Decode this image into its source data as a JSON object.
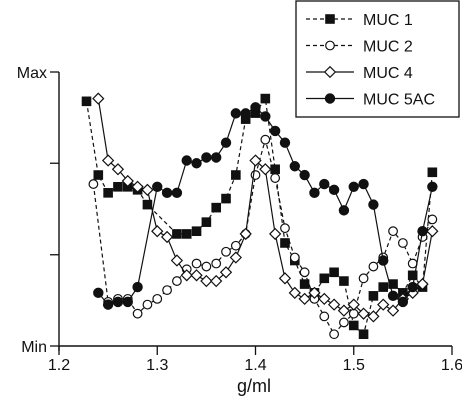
{
  "chart_data": {
    "type": "line",
    "title": "",
    "xlabel": "g/ml",
    "ylabel": "",
    "xlim": [
      1.2,
      1.6
    ],
    "ylim": [
      0,
      1
    ],
    "x_ticks": [
      {
        "value": 1.2,
        "label": "1.2"
      },
      {
        "value": 1.3,
        "label": "1.3"
      },
      {
        "value": 1.4,
        "label": "1.4"
      },
      {
        "value": 1.5,
        "label": "1.5"
      },
      {
        "value": 1.6,
        "label": "1.6"
      }
    ],
    "y_ticks": [
      {
        "value": 0,
        "label": "Min"
      },
      {
        "value": 0.333,
        "label": ""
      },
      {
        "value": 0.667,
        "label": ""
      },
      {
        "value": 1,
        "label": "Max"
      }
    ],
    "grid": false,
    "legend_position": "top-right",
    "series": [
      {
        "name": "MUC 1",
        "line_style": "dashed",
        "marker": "filled-square",
        "x": [
          1.228,
          1.24,
          1.25,
          1.26,
          1.27,
          1.28,
          1.29,
          1.32,
          1.33,
          1.34,
          1.35,
          1.36,
          1.37,
          1.38,
          1.39,
          1.4,
          1.41,
          1.42,
          1.43,
          1.44,
          1.45,
          1.46,
          1.47,
          1.48,
          1.49,
          1.5,
          1.51,
          1.52,
          1.53,
          1.54,
          1.55,
          1.56,
          1.57,
          1.58
        ],
        "y": [
          0.893,
          0.624,
          0.559,
          0.581,
          0.581,
          0.57,
          0.516,
          0.409,
          0.409,
          0.419,
          0.452,
          0.505,
          0.538,
          0.624,
          0.828,
          0.85,
          0.903,
          0.645,
          0.376,
          0.312,
          0.226,
          0.194,
          0.247,
          0.269,
          0.237,
          0.075,
          0.043,
          0.183,
          0.215,
          0.226,
          0.194,
          0.258,
          0.215,
          0.634
        ]
      },
      {
        "name": "MUC 2",
        "line_style": "dashed",
        "marker": "open-circle",
        "x": [
          1.235,
          1.25,
          1.26,
          1.27,
          1.28,
          1.29,
          1.3,
          1.31,
          1.32,
          1.33,
          1.34,
          1.35,
          1.36,
          1.37,
          1.38,
          1.39,
          1.4,
          1.41,
          1.42,
          1.43,
          1.44,
          1.45,
          1.46,
          1.47,
          1.48,
          1.49,
          1.5,
          1.51,
          1.52,
          1.53,
          1.54,
          1.55,
          1.56,
          1.57,
          1.58
        ],
        "y": [
          0.591,
          0.161,
          0.172,
          0.172,
          0.118,
          0.151,
          0.172,
          0.204,
          0.237,
          0.28,
          0.301,
          0.29,
          0.301,
          0.344,
          0.366,
          0.409,
          0.624,
          0.753,
          0.613,
          0.43,
          0.323,
          0.269,
          0.172,
          0.108,
          0.043,
          0.086,
          0.118,
          0.247,
          0.29,
          0.323,
          0.419,
          0.376,
          0.301,
          0.398,
          0.462
        ]
      },
      {
        "name": "MUC 4",
        "line_style": "solid",
        "marker": "open-diamond",
        "x": [
          1.24,
          1.25,
          1.26,
          1.27,
          1.28,
          1.29,
          1.3,
          1.31,
          1.32,
          1.33,
          1.34,
          1.35,
          1.36,
          1.37,
          1.38,
          1.39,
          1.4,
          1.41,
          1.42,
          1.43,
          1.44,
          1.45,
          1.46,
          1.47,
          1.48,
          1.49,
          1.5,
          1.51,
          1.52,
          1.53,
          1.54,
          1.55,
          1.56,
          1.57,
          1.58
        ],
        "y": [
          0.903,
          0.677,
          0.645,
          0.602,
          0.581,
          0.57,
          0.419,
          0.398,
          0.312,
          0.258,
          0.258,
          0.237,
          0.237,
          0.269,
          0.323,
          0.409,
          0.677,
          0.645,
          0.409,
          0.247,
          0.194,
          0.172,
          0.194,
          0.172,
          0.151,
          0.129,
          0.151,
          0.118,
          0.108,
          0.151,
          0.129,
          0.172,
          0.194,
          0.226,
          0.419
        ]
      },
      {
        "name": "MUC 5AC",
        "line_style": "solid",
        "marker": "filled-circle",
        "x": [
          1.24,
          1.25,
          1.26,
          1.27,
          1.28,
          1.3,
          1.31,
          1.32,
          1.33,
          1.34,
          1.35,
          1.36,
          1.37,
          1.38,
          1.39,
          1.4,
          1.41,
          1.42,
          1.43,
          1.44,
          1.45,
          1.46,
          1.47,
          1.48,
          1.49,
          1.5,
          1.51,
          1.52,
          1.53,
          1.54,
          1.55,
          1.56,
          1.57,
          1.58
        ],
        "y": [
          0.194,
          0.151,
          0.161,
          0.161,
          0.215,
          0.581,
          0.559,
          0.559,
          0.677,
          0.667,
          0.688,
          0.688,
          0.742,
          0.849,
          0.849,
          0.871,
          0.838,
          0.785,
          0.742,
          0.656,
          0.624,
          0.559,
          0.591,
          0.57,
          0.495,
          0.581,
          0.591,
          0.516,
          0.312,
          0.183,
          0.161,
          0.215,
          0.419,
          0.581
        ]
      }
    ]
  }
}
